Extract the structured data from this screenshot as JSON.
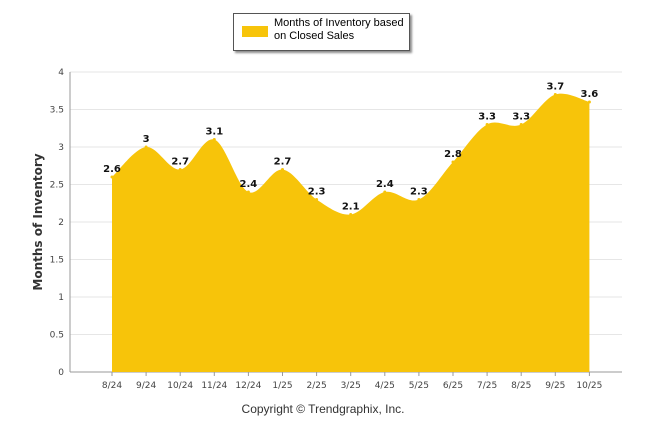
{
  "chart_data": {
    "type": "area",
    "title": "",
    "xlabel": "",
    "ylabel": "Months of Inventory",
    "ylim": [
      0,
      4
    ],
    "yticks": [
      "0",
      "0.5",
      "1",
      "1.5",
      "2",
      "2.5",
      "3",
      "3.5",
      "4"
    ],
    "grid": true,
    "legend_position": "top-center",
    "categories": [
      "8/24",
      "9/24",
      "10/24",
      "11/24",
      "12/24",
      "1/25",
      "2/25",
      "3/25",
      "4/25",
      "5/25",
      "6/25",
      "7/25",
      "8/25",
      "9/25",
      "10/25"
    ],
    "series": [
      {
        "name": "Months of Inventory based on Closed Sales",
        "color": "#F7C40A",
        "values": [
          2.6,
          3,
          2.7,
          3.1,
          2.4,
          2.7,
          2.3,
          2.1,
          2.4,
          2.3,
          2.8,
          3.3,
          3.3,
          3.7,
          3.6
        ],
        "labels": [
          "2.6",
          "3",
          "2.7",
          "3.1",
          "2.4",
          "2.7",
          "2.3",
          "2.1",
          "2.4",
          "2.3",
          "2.8",
          "3.3",
          "3.3",
          "3.7",
          "3.6"
        ]
      }
    ],
    "legend": {
      "line1": "Months of Inventory based",
      "line2": "on Closed Sales"
    },
    "credit": "Copyright © Trendgraphix, Inc."
  }
}
